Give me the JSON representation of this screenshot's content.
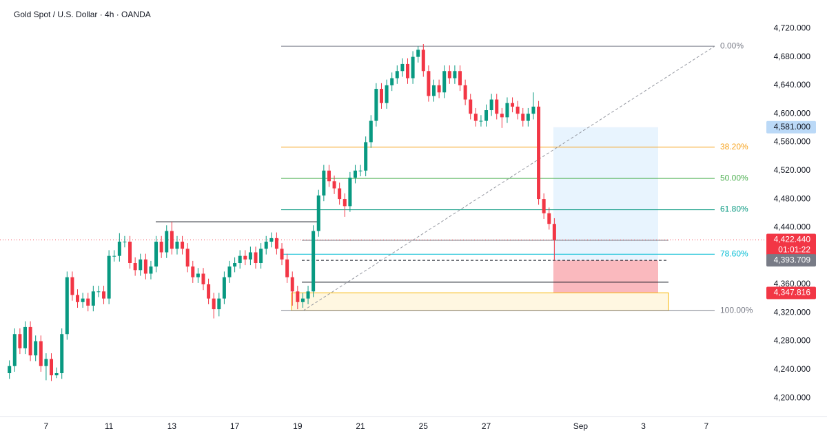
{
  "chart_data": {
    "type": "candlestick",
    "title": "Gold Spot / U.S. Dollar · 4h · OANDA",
    "up_color": "#089981",
    "down_color": "#f23645",
    "xlim": [
      -1.8,
      144.2
    ],
    "xticks": [
      {
        "value": 7,
        "label": "7"
      },
      {
        "value": 19,
        "label": "11"
      },
      {
        "value": 31,
        "label": "13"
      },
      {
        "value": 43,
        "label": "17"
      },
      {
        "value": 55,
        "label": "19"
      },
      {
        "value": 67,
        "label": "21"
      },
      {
        "value": 79,
        "label": "25"
      },
      {
        "value": 91,
        "label": "27"
      },
      {
        "value": 109,
        "label": "Sep"
      },
      {
        "value": 121,
        "label": "3"
      },
      {
        "value": 133,
        "label": "7"
      }
    ],
    "ylim": [
      4174,
      4760
    ],
    "yticks": [
      {
        "value": 4200,
        "label": "4,200.000"
      },
      {
        "value": 4240,
        "label": "4,240.000"
      },
      {
        "value": 4280,
        "label": "4,280.000"
      },
      {
        "value": 4320,
        "label": "4,320.000"
      },
      {
        "value": 4360,
        "label": "4,360.000"
      },
      {
        "value": 4440,
        "label": "4,440.000"
      },
      {
        "value": 4480,
        "label": "4,480.000"
      },
      {
        "value": 4520,
        "label": "4,520.000"
      },
      {
        "value": 4560,
        "label": "4,560.000"
      },
      {
        "value": 4600,
        "label": "4,600.000"
      },
      {
        "value": 4640,
        "label": "4,640.000"
      },
      {
        "value": 4680,
        "label": "4,680.000"
      },
      {
        "value": 4720,
        "label": "4,720.000"
      }
    ],
    "open": [
      4235,
      4245,
      4290,
      4270,
      4300,
      4260,
      4280,
      4245,
      4255,
      4232,
      4235,
      4290,
      4370,
      4345,
      4335,
      4340,
      4330,
      4350,
      4350,
      4340,
      4400,
      4400,
      4420,
      4420,
      4390,
      4380,
      4395,
      4375,
      4385,
      4420,
      4405,
      4435,
      4410,
      4420,
      4410,
      4385,
      4370,
      4375,
      4360,
      4340,
      4325,
      4340,
      4370,
      4385,
      4390,
      4400,
      4395,
      4405,
      4390,
      4410,
      4420,
      4425,
      4410,
      4395,
      4370,
      4350,
      4335,
      4340,
      4350,
      4435,
      4485,
      4520,
      4505,
      4495,
      4480,
      4470,
      4510,
      4520,
      4520,
      4560,
      4590,
      4635,
      4615,
      4640,
      4650,
      4660,
      4670,
      4650,
      4680,
      4690,
      4660,
      4625,
      4640,
      4630,
      4660,
      4650,
      4660,
      4640,
      4620,
      4600,
      4590,
      4590,
      4605,
      4620,
      4600,
      4595,
      4615,
      4610,
      4600,
      4590,
      4600,
      4610,
      4480,
      4460,
      4445
    ],
    "high": [
      4253,
      4298,
      4298,
      4308,
      4308,
      4288,
      4288,
      4263,
      4263,
      4243,
      4298,
      4378,
      4378,
      4353,
      4348,
      4348,
      4358,
      4358,
      4358,
      4408,
      4408,
      4432,
      4428,
      4428,
      4398,
      4403,
      4403,
      4393,
      4428,
      4428,
      4443,
      4448,
      4428,
      4428,
      4418,
      4393,
      4383,
      4383,
      4368,
      4348,
      4348,
      4378,
      4393,
      4398,
      4408,
      4408,
      4413,
      4413,
      4418,
      4428,
      4433,
      4433,
      4418,
      4403,
      4378,
      4358,
      4348,
      4358,
      4443,
      4493,
      4528,
      4528,
      4513,
      4503,
      4488,
      4518,
      4528,
      4528,
      4568,
      4598,
      4643,
      4643,
      4648,
      4658,
      4668,
      4678,
      4678,
      4688,
      4695,
      4698,
      4668,
      4648,
      4648,
      4668,
      4668,
      4668,
      4668,
      4648,
      4628,
      4608,
      4598,
      4613,
      4628,
      4628,
      4608,
      4623,
      4623,
      4618,
      4608,
      4608,
      4630,
      4618,
      4488,
      4468,
      4453
    ],
    "low": [
      4227,
      4237,
      4262,
      4262,
      4252,
      4252,
      4237,
      4225,
      4224,
      4228,
      4227,
      4282,
      4337,
      4327,
      4327,
      4322,
      4322,
      4342,
      4332,
      4332,
      4392,
      4392,
      4412,
      4382,
      4372,
      4372,
      4367,
      4367,
      4377,
      4397,
      4397,
      4402,
      4402,
      4402,
      4377,
      4362,
      4362,
      4352,
      4332,
      4312,
      4315,
      4332,
      4362,
      4377,
      4382,
      4387,
      4387,
      4382,
      4382,
      4402,
      4412,
      4402,
      4387,
      4362,
      4330,
      4325,
      4327,
      4332,
      4342,
      4427,
      4477,
      4497,
      4487,
      4472,
      4455,
      4462,
      4502,
      4512,
      4512,
      4552,
      4582,
      4607,
      4607,
      4632,
      4642,
      4652,
      4642,
      4642,
      4672,
      4652,
      4617,
      4617,
      4622,
      4622,
      4642,
      4642,
      4632,
      4612,
      4592,
      4582,
      4582,
      4582,
      4597,
      4592,
      4580,
      4587,
      4602,
      4592,
      4582,
      4582,
      4592,
      4472,
      4452,
      4437,
      4394
    ],
    "close": [
      4245,
      4290,
      4270,
      4300,
      4260,
      4280,
      4245,
      4255,
      4232,
      4235,
      4290,
      4370,
      4345,
      4335,
      4340,
      4330,
      4350,
      4350,
      4340,
      4400,
      4400,
      4420,
      4420,
      4390,
      4380,
      4395,
      4375,
      4385,
      4420,
      4405,
      4435,
      4410,
      4420,
      4410,
      4385,
      4370,
      4375,
      4360,
      4340,
      4325,
      4340,
      4370,
      4385,
      4390,
      4400,
      4395,
      4405,
      4390,
      4410,
      4420,
      4425,
      4410,
      4395,
      4370,
      4350,
      4335,
      4340,
      4350,
      4435,
      4485,
      4520,
      4505,
      4495,
      4480,
      4470,
      4510,
      4520,
      4520,
      4560,
      4590,
      4635,
      4615,
      4640,
      4650,
      4660,
      4670,
      4650,
      4680,
      4690,
      4660,
      4625,
      4640,
      4630,
      4660,
      4650,
      4660,
      4640,
      4620,
      4600,
      4590,
      4590,
      4605,
      4620,
      4600,
      4595,
      4615,
      4610,
      4600,
      4590,
      4600,
      4610,
      4480,
      4460,
      4445,
      4422.44
    ],
    "fib_levels": [
      {
        "value": 4695,
        "label": "0.00%",
        "color": "#787b86"
      },
      {
        "value": 4553,
        "label": "38.20%",
        "color": "#f7a21b"
      },
      {
        "value": 4509,
        "label": "50.00%",
        "color": "#4caf50"
      },
      {
        "value": 4465,
        "label": "61.80%",
        "color": "#089981"
      },
      {
        "value": 4402.4,
        "label": "78.60%",
        "color": "#00bcd4"
      },
      {
        "value": 4323,
        "label": "100.00%",
        "color": "#787b86"
      }
    ],
    "horizontal_lines": [
      4448,
      4422,
      4363
    ],
    "zone": [
      4323,
      4348
    ],
    "position": {
      "target": 4581,
      "entry": 4393.709,
      "stop": 4347.816
    },
    "price_tags": [
      {
        "value": 4581,
        "label": "4,581.000",
        "color": "#bbd9f7",
        "text_color": "#131722"
      },
      {
        "value": 4422.44,
        "label": "4,422.440",
        "countdown": "01:01:22",
        "color": "#f23645",
        "text_color": "#ffffff"
      },
      {
        "value": 4393.709,
        "label": "4,393.709",
        "color": "#787b86",
        "text_color": "#ffffff"
      },
      {
        "value": 4347.816,
        "label": "4,347.816",
        "color": "#f23645",
        "text_color": "#ffffff"
      }
    ]
  }
}
